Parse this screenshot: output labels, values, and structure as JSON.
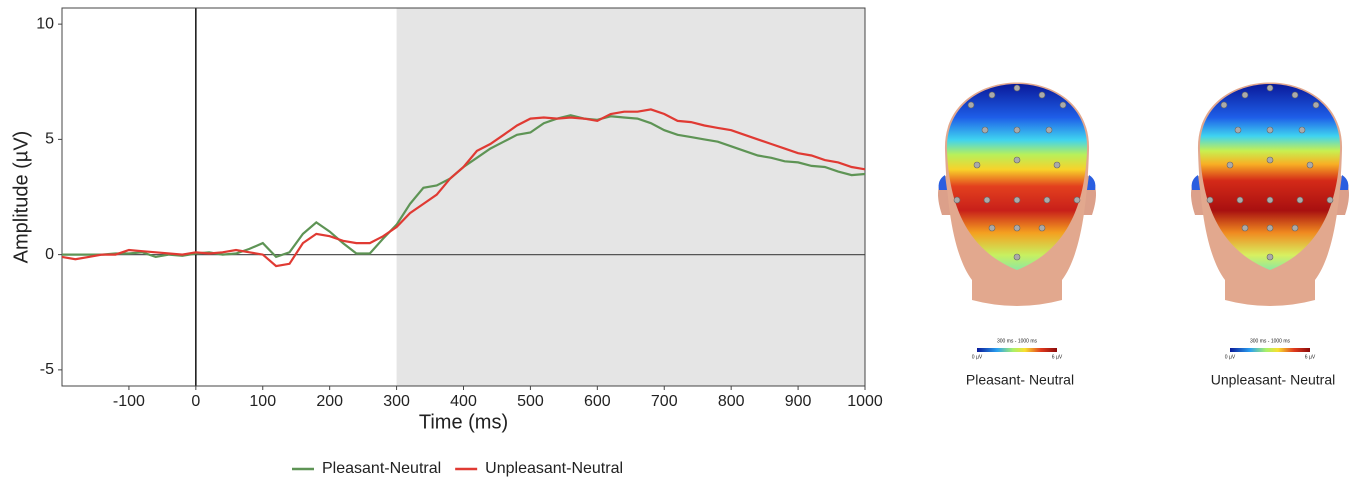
{
  "chart_data": {
    "type": "line",
    "x_label": "Time (ms)",
    "y_label": "Amplitude (µV)",
    "x": [
      -200,
      -180,
      -160,
      -140,
      -120,
      -100,
      -80,
      -60,
      -40,
      -20,
      0,
      20,
      40,
      60,
      80,
      100,
      120,
      140,
      160,
      180,
      200,
      220,
      240,
      260,
      280,
      300,
      320,
      340,
      360,
      380,
      400,
      420,
      440,
      460,
      480,
      500,
      520,
      540,
      560,
      580,
      600,
      620,
      640,
      660,
      680,
      700,
      720,
      740,
      760,
      780,
      800,
      820,
      840,
      860,
      880,
      900,
      920,
      940,
      960,
      980,
      1000
    ],
    "series": [
      {
        "name": "Pleasant-Neutral",
        "color": "#5e9455",
        "values": [
          0,
          0,
          0,
          0,
          0.05,
          0.05,
          0.1,
          -0.1,
          0,
          -0.05,
          0.05,
          0.1,
          0,
          0.05,
          0.25,
          0.5,
          -0.1,
          0.1,
          0.9,
          1.4,
          1.0,
          0.5,
          0.05,
          0.05,
          0.7,
          1.3,
          2.2,
          2.9,
          3.0,
          3.3,
          3.8,
          4.2,
          4.6,
          4.9,
          5.2,
          5.3,
          5.7,
          5.9,
          6.05,
          5.9,
          5.85,
          6.0,
          5.95,
          5.9,
          5.7,
          5.4,
          5.2,
          5.1,
          5.0,
          4.9,
          4.7,
          4.5,
          4.3,
          4.2,
          4.05,
          4.0,
          3.85,
          3.8,
          3.6,
          3.45,
          3.5
        ]
      },
      {
        "name": "Unpleasant-Neutral",
        "color": "#e03a33",
        "values": [
          -0.1,
          -0.2,
          -0.1,
          0,
          0,
          0.2,
          0.15,
          0.1,
          0.05,
          0,
          0.1,
          0.05,
          0.1,
          0.2,
          0.1,
          0,
          -0.5,
          -0.4,
          0.5,
          0.9,
          0.8,
          0.6,
          0.5,
          0.5,
          0.8,
          1.2,
          1.8,
          2.2,
          2.6,
          3.3,
          3.8,
          4.5,
          4.8,
          5.2,
          5.6,
          5.9,
          5.95,
          5.9,
          5.95,
          5.9,
          5.8,
          6.1,
          6.2,
          6.2,
          6.3,
          6.1,
          5.8,
          5.75,
          5.6,
          5.5,
          5.4,
          5.2,
          5.0,
          4.8,
          4.6,
          4.4,
          4.3,
          4.1,
          4.0,
          3.8,
          3.7
        ]
      }
    ],
    "xlim": [
      -200,
      1000
    ],
    "ylim": [
      -5.7,
      10.7
    ],
    "xticks": [
      -100,
      0,
      100,
      200,
      300,
      400,
      500,
      600,
      700,
      800,
      900,
      1000
    ],
    "yticks": [
      -5,
      0,
      5,
      10
    ],
    "shaded_region": [
      300,
      1000
    ],
    "legend": "bottom"
  },
  "topomaps": [
    {
      "label": "Pleasant- Neutral",
      "time_window": "300 ms - 1000 ms",
      "scale_labels": [
        "0 µV",
        "6 µV"
      ]
    },
    {
      "label": "Unpleasant- Neutral",
      "time_window": "300 ms - 1000 ms",
      "scale_labels": [
        "0 µV",
        "6 µV"
      ]
    }
  ]
}
